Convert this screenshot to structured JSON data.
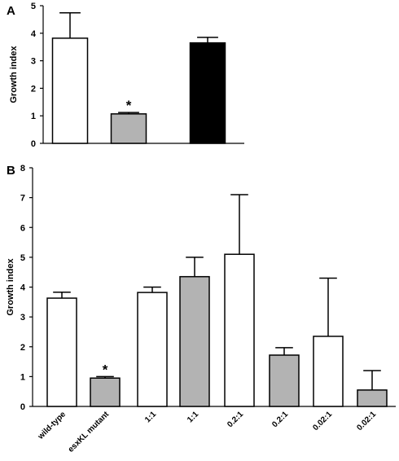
{
  "chart_data": [
    {
      "type": "bar",
      "panel": "A",
      "title": "",
      "xlabel": "",
      "ylabel": "Growth index",
      "ylim": [
        0,
        5
      ],
      "yticks": [
        0,
        1,
        2,
        3,
        4,
        5
      ],
      "categories": [
        "",
        "",
        ""
      ],
      "values": [
        3.82,
        1.07,
        3.65
      ],
      "errors": [
        0.92,
        0.05,
        0.2
      ],
      "colors": [
        "#ffffff",
        "#b3b3b3",
        "#000000"
      ],
      "annotations": [
        {
          "category_index": 1,
          "text": "*"
        }
      ],
      "grid": false
    },
    {
      "type": "bar",
      "panel": "B",
      "title": "",
      "xlabel": "",
      "ylabel": "Growth index",
      "ylim": [
        0,
        8
      ],
      "yticks": [
        0,
        1,
        2,
        3,
        4,
        5,
        6,
        7,
        8
      ],
      "categories": [
        "wild-type",
        "esxKL mutant",
        "1:1",
        "1:1",
        "0.2:1",
        "0.2:1",
        "0.02:1",
        "0.02:1"
      ],
      "values": [
        3.63,
        0.95,
        3.82,
        4.35,
        5.1,
        1.72,
        2.35,
        0.55
      ],
      "errors": [
        0.2,
        0.05,
        0.18,
        0.65,
        2.0,
        0.25,
        1.95,
        0.65
      ],
      "colors": [
        "#ffffff",
        "#b3b3b3",
        "#ffffff",
        "#b3b3b3",
        "#ffffff",
        "#b3b3b3",
        "#ffffff",
        "#b3b3b3"
      ],
      "annotations": [
        {
          "category_index": 1,
          "text": "*"
        }
      ],
      "grid": false
    }
  ]
}
